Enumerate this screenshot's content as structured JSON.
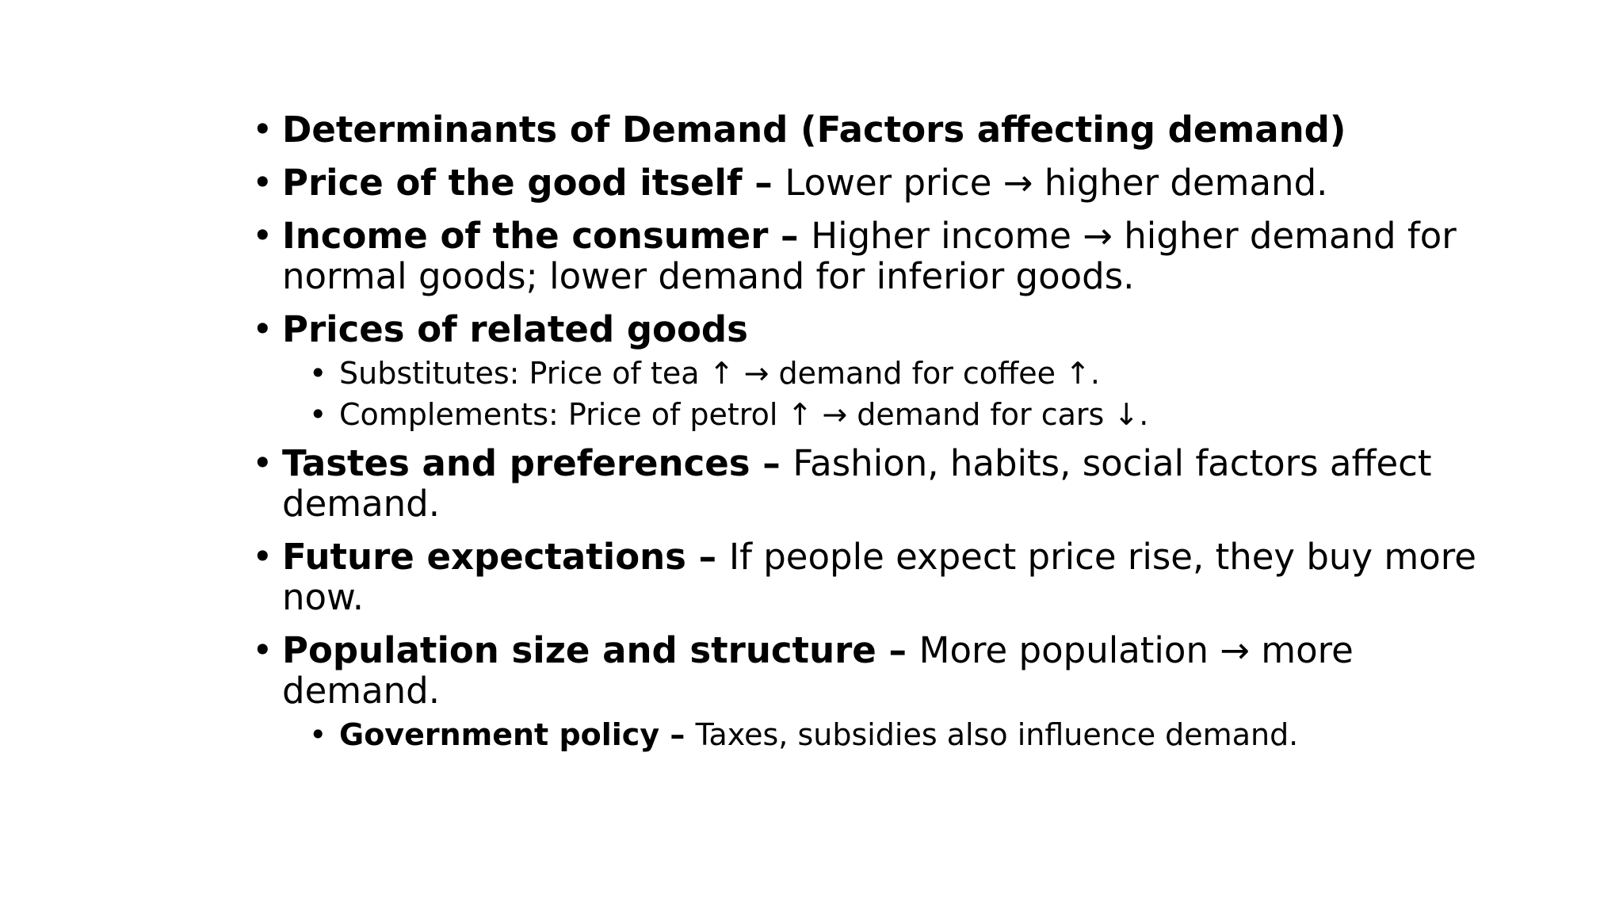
{
  "bullet_char": "•",
  "items": [
    {
      "bold": "Determinants of Demand (Factors affecting demand)",
      "sep": "",
      "text": ""
    },
    {
      "bold": "Price of the good itself",
      "sep": " – ",
      "text": "Lower price → higher demand."
    },
    {
      "bold": "Income of the consumer",
      "sep": " – ",
      "text": "Higher income → higher demand for normal goods; lower demand for inferior goods."
    },
    {
      "bold": "Prices of related goods",
      "sep": "",
      "text": ""
    },
    {
      "bold": "",
      "sep": "",
      "text": "Substitutes: Price of tea ↑ → demand for coffee ↑."
    },
    {
      "bold": "",
      "sep": "",
      "text": "Complements: Price of petrol ↑ → demand for cars ↓."
    },
    {
      "bold": "Tastes and preferences",
      "sep": " – ",
      "text": "Fashion, habits, social factors affect demand."
    },
    {
      "bold": "Future expectations",
      "sep": " – ",
      "text": "If people expect price rise, they buy more now."
    },
    {
      "bold": "Population size and structure",
      "sep": " – ",
      "text": "More population → more demand."
    },
    {
      "bold": "Government policy",
      "sep": " – ",
      "text": "Taxes, subsidies also influence demand."
    }
  ]
}
